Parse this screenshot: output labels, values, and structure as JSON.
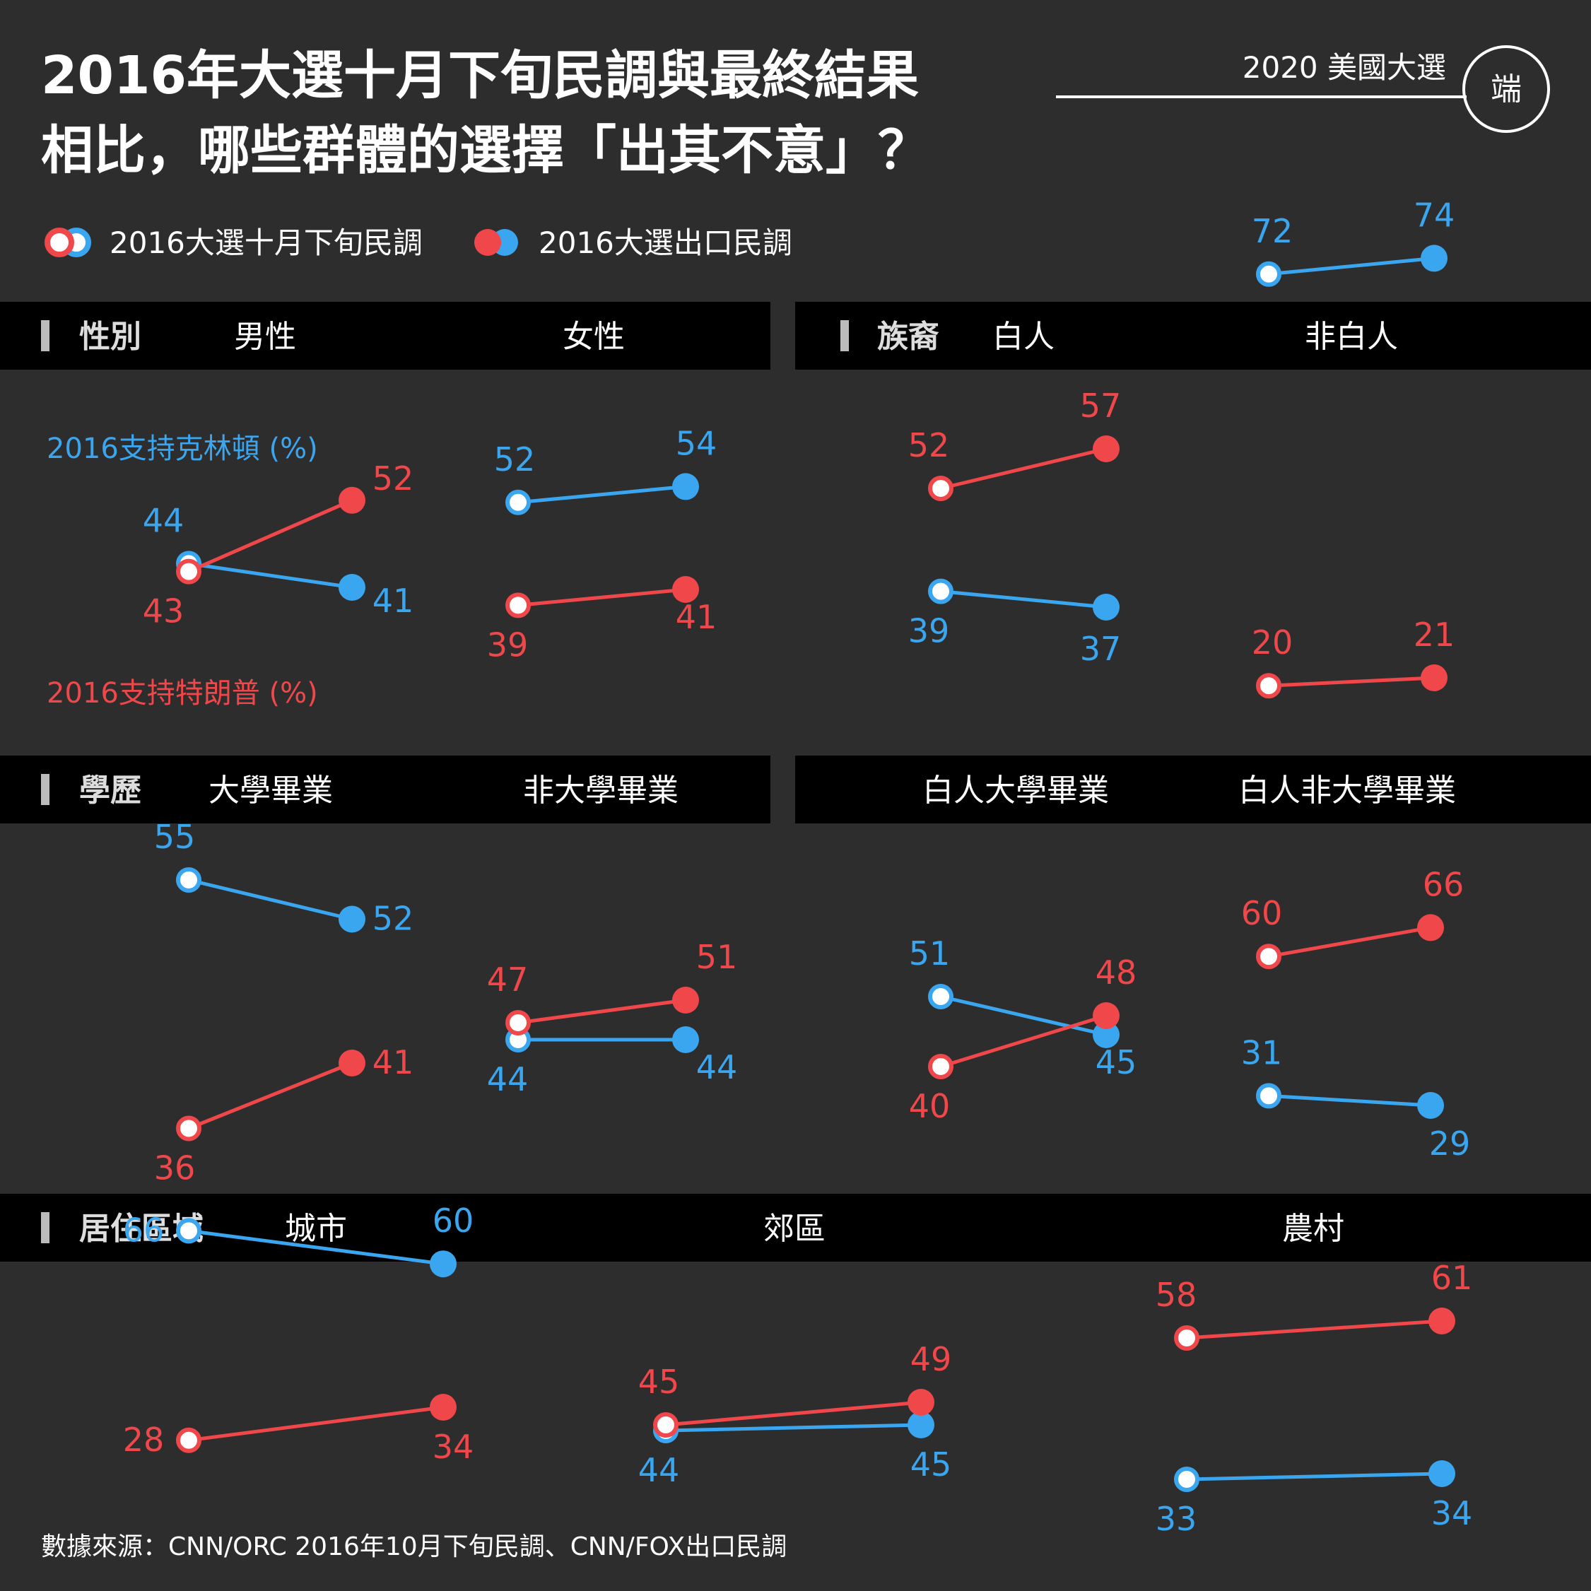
{
  "header": {
    "title_line1": "2016年大選十月下旬民調與最終結果",
    "title_line2": "相比，哪些群體的選擇「出其不意」？",
    "brand": "2020 美國大選",
    "logo": "端"
  },
  "legend": {
    "before_label": "2016大選十月下旬民調",
    "after_label": "2016大選出口民調"
  },
  "annotations": {
    "clinton_label": "2016支持克林頓 (%)",
    "trump_label": "2016支持特朗普 (%)"
  },
  "colors": {
    "background": "#2d2d2d",
    "band": "#000000",
    "clinton": "#3aa6ef",
    "trump": "#f0474b",
    "text": "#ffffff",
    "marker_bar": "#bbbbbb"
  },
  "footer": {
    "source": "數據來源：CNN/ORC 2016年10月下旬民調、CNN/FOX出口民調"
  },
  "sections": [
    {
      "category": "性別",
      "groups": [
        "男性",
        "女性"
      ]
    },
    {
      "category": "族裔",
      "groups": [
        "白人",
        "非白人"
      ]
    },
    {
      "category": "學歷",
      "groups": [
        "大學畢業",
        "非大學畢業"
      ]
    },
    {
      "category": "",
      "groups": [
        "白人大學畢業",
        "白人非大學畢業"
      ]
    },
    {
      "category": "居住區域",
      "groups": [
        "城市",
        "郊區",
        "農村"
      ]
    }
  ],
  "chart_data": {
    "type": "line",
    "title": "2016年大選十月下旬民調與最終結果相比，哪些群體的選擇「出其不意」？",
    "x": [
      "2016大選十月下旬民調",
      "2016大選出口民調"
    ],
    "unit": "%",
    "panels": [
      {
        "group": "男性",
        "series": [
          {
            "name": "2016支持克林頓 (%)",
            "values": [
              44,
              41
            ]
          },
          {
            "name": "2016支持特朗普 (%)",
            "values": [
              43,
              52
            ]
          }
        ]
      },
      {
        "group": "女性",
        "series": [
          {
            "name": "2016支持克林頓 (%)",
            "values": [
              52,
              54
            ]
          },
          {
            "name": "2016支持特朗普 (%)",
            "values": [
              39,
              41
            ]
          }
        ]
      },
      {
        "group": "白人",
        "series": [
          {
            "name": "2016支持克林頓 (%)",
            "values": [
              39,
              37
            ]
          },
          {
            "name": "2016支持特朗普 (%)",
            "values": [
              52,
              57
            ]
          }
        ]
      },
      {
        "group": "非白人",
        "series": [
          {
            "name": "2016支持克林頓 (%)",
            "values": [
              72,
              74
            ]
          },
          {
            "name": "2016支持特朗普 (%)",
            "values": [
              20,
              21
            ]
          }
        ]
      },
      {
        "group": "大學畢業",
        "series": [
          {
            "name": "2016支持克林頓 (%)",
            "values": [
              55,
              52
            ]
          },
          {
            "name": "2016支持特朗普 (%)",
            "values": [
              36,
              41
            ]
          }
        ]
      },
      {
        "group": "非大學畢業",
        "series": [
          {
            "name": "2016支持克林頓 (%)",
            "values": [
              44,
              44
            ]
          },
          {
            "name": "2016支持特朗普 (%)",
            "values": [
              47,
              51
            ]
          }
        ]
      },
      {
        "group": "白人大學畢業",
        "series": [
          {
            "name": "2016支持克林頓 (%)",
            "values": [
              51,
              45
            ]
          },
          {
            "name": "2016支持特朗普 (%)",
            "values": [
              40,
              48
            ]
          }
        ]
      },
      {
        "group": "白人非大學畢業",
        "series": [
          {
            "name": "2016支持克林頓 (%)",
            "values": [
              31,
              29
            ]
          },
          {
            "name": "2016支持特朗普 (%)",
            "values": [
              60,
              66
            ]
          }
        ]
      },
      {
        "group": "城市",
        "series": [
          {
            "name": "2016支持克林頓 (%)",
            "values": [
              66,
              60
            ]
          },
          {
            "name": "2016支持特朗普 (%)",
            "values": [
              28,
              34
            ]
          }
        ]
      },
      {
        "group": "郊區",
        "series": [
          {
            "name": "2016支持克林頓 (%)",
            "values": [
              44,
              45
            ]
          },
          {
            "name": "2016支持特朗普 (%)",
            "values": [
              45,
              49
            ]
          }
        ]
      },
      {
        "group": "農村",
        "series": [
          {
            "name": "2016支持克林頓 (%)",
            "values": [
              33,
              34
            ]
          },
          {
            "name": "2016支持特朗普 (%)",
            "values": [
              58,
              61
            ]
          }
        ]
      }
    ]
  }
}
